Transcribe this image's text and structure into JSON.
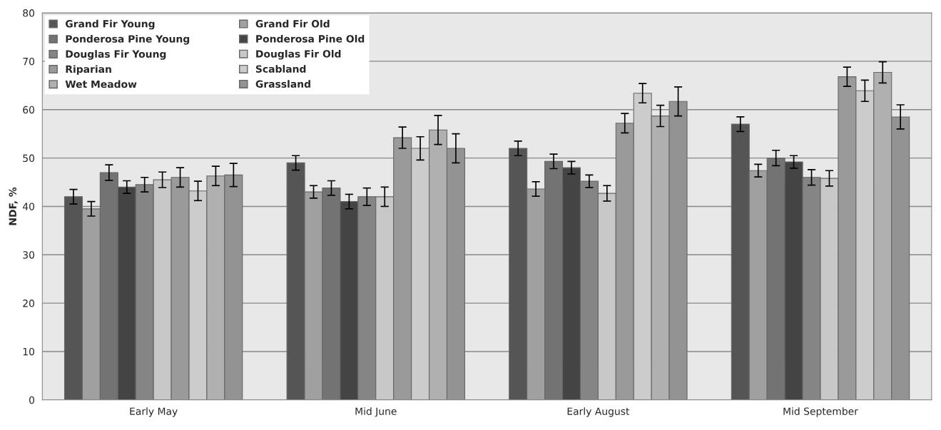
{
  "chart_data": {
    "type": "bar",
    "ylabel": "NDF, %",
    "categories": [
      "Early May",
      "Mid June",
      "Early August",
      "Mid September"
    ],
    "ylim": [
      0,
      80
    ],
    "yticks": [
      0,
      10,
      20,
      30,
      40,
      50,
      60,
      70,
      80
    ],
    "grid": "y",
    "legend": "top left",
    "series": [
      {
        "name": "Grand Fir Young",
        "color": "#555555",
        "values": [
          42,
          49,
          52,
          57
        ],
        "errors": [
          1.5,
          1.5,
          1.5,
          1.5
        ]
      },
      {
        "name": "Grand Fir Old",
        "color": "#a0a0a0",
        "values": [
          39.5,
          43,
          43.6,
          47.4
        ],
        "errors": [
          1.5,
          1.3,
          1.5,
          1.3
        ]
      },
      {
        "name": "Ponderosa Pine Young",
        "color": "#737373",
        "values": [
          47,
          43.8,
          49.3,
          50
        ],
        "errors": [
          1.6,
          1.5,
          1.5,
          1.6
        ]
      },
      {
        "name": "Ponderosa Pine Old",
        "color": "#444444",
        "values": [
          44,
          41,
          48,
          49.2
        ],
        "errors": [
          1.3,
          1.5,
          1.3,
          1.3
        ]
      },
      {
        "name": "Douglas Fir Young",
        "color": "#858585",
        "values": [
          44.5,
          42,
          45.2,
          46
        ],
        "errors": [
          1.5,
          1.8,
          1.3,
          1.6
        ]
      },
      {
        "name": "Douglas Fir Old",
        "color": "#c8c8c8",
        "values": [
          45.5,
          42,
          42.7,
          45.8
        ],
        "errors": [
          1.6,
          2,
          1.6,
          1.6
        ]
      },
      {
        "name": "Riparian",
        "color": "#9a9a9a",
        "values": [
          46,
          54.2,
          57.2,
          66.8
        ],
        "errors": [
          2,
          2.2,
          2,
          2
        ]
      },
      {
        "name": "Scabland",
        "color": "#cccccc",
        "values": [
          43.2,
          52,
          63.4,
          63.9
        ],
        "errors": [
          2,
          2.4,
          2,
          2.2
        ]
      },
      {
        "name": "Wet Meadow",
        "color": "#b0b0b0",
        "values": [
          46.3,
          55.8,
          58.7,
          67.7
        ],
        "errors": [
          2,
          3,
          2.2,
          2.2
        ]
      },
      {
        "name": "Grassland",
        "color": "#939393",
        "values": [
          46.5,
          52,
          61.7,
          58.5
        ],
        "errors": [
          2.4,
          3,
          3,
          2.5
        ]
      }
    ]
  }
}
